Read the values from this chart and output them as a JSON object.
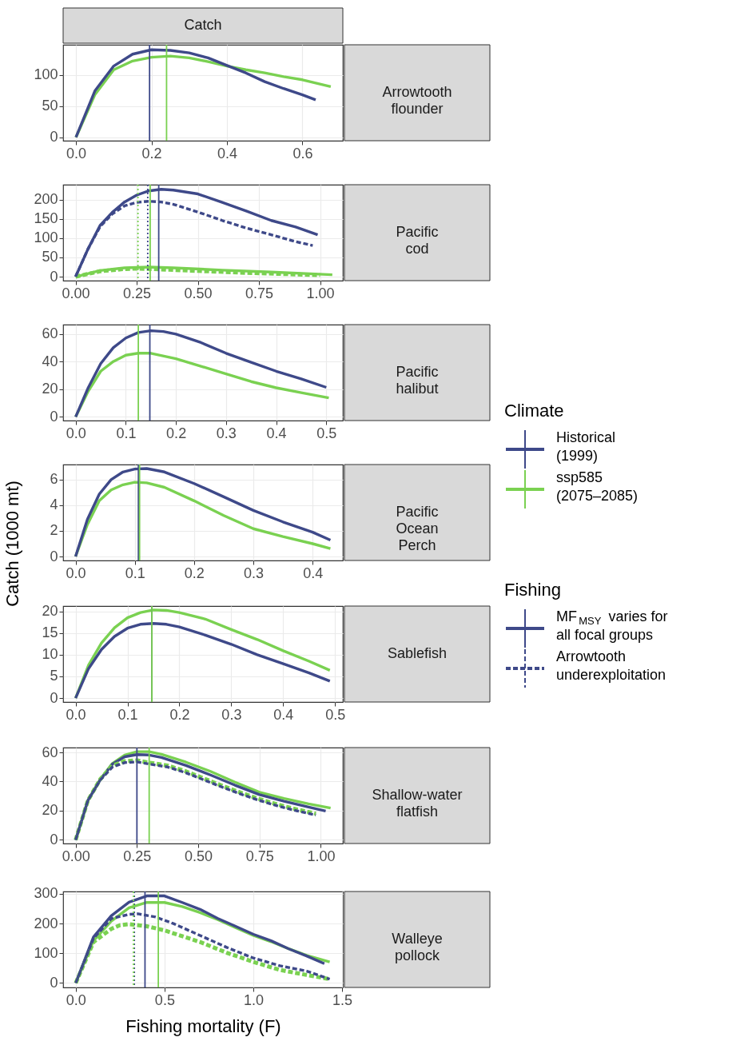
{
  "chart_data": [
    {
      "type": "line",
      "title": "Catch",
      "annotations": [
        "Arrowtooth flounder"
      ],
      "legend_title": "Climate",
      "legend": "right",
      "grid": true,
      "xlim": [
        -0.034,
        0.707
      ],
      "ylim": [
        -5.5,
        148
      ],
      "xticks": [
        {
          "value": 0,
          "label": "0.0"
        },
        0.2,
        0.4,
        0.6
      ],
      "yticks": [
        0,
        50,
        100
      ],
      "series": [
        {
          "name": "Historical (1999)",
          "color": "#3e4989",
          "line_style": "solid",
          "x": [
            0,
            0.05,
            0.1,
            0.15,
            0.2,
            0.25,
            0.3,
            0.35,
            0.4,
            0.45,
            0.5,
            0.55,
            0.6,
            0.635
          ],
          "values": [
            0,
            74,
            114,
            133,
            140,
            139,
            135,
            127,
            115,
            103,
            89,
            78,
            68,
            60
          ]
        },
        {
          "name": "ssp585 (2075–2085)",
          "color": "#7ad151",
          "line_style": "solid",
          "x": [
            0,
            0.05,
            0.1,
            0.15,
            0.2,
            0.25,
            0.3,
            0.35,
            0.4,
            0.45,
            0.5,
            0.55,
            0.6,
            0.675
          ],
          "values": [
            0,
            68,
            108,
            122,
            128,
            130,
            127,
            121,
            114,
            108,
            103,
            97,
            92,
            81
          ]
        }
      ],
      "ref_lines": [
        {
          "axis": "x",
          "value": 0.195,
          "color": "#3e4989",
          "line_style": "solid"
        },
        {
          "axis": "x",
          "value": 0.24,
          "color": "#7ad151",
          "line_style": "solid"
        }
      ]
    },
    {
      "type": "line",
      "annotations": [
        "Pacific cod"
      ],
      "legend_title": "Fishing",
      "legend": "right",
      "grid": true,
      "xlim": [
        -0.051,
        1.093
      ],
      "ylim": [
        -10.3,
        239
      ],
      "xticks": [
        {
          "value": 0,
          "label": "0.00"
        },
        {
          "value": 0.25,
          "label": "0.25"
        },
        {
          "value": 0.5,
          "label": "0.50"
        },
        {
          "value": 0.75,
          "label": "0.75"
        },
        {
          "value": 1,
          "label": "1.00"
        }
      ],
      "yticks": [
        0,
        50,
        100,
        150,
        200
      ],
      "series": [
        {
          "name": "MF$_{MSY}$ varies for all focal groups",
          "color": "#3e4989",
          "line_style": "solid",
          "x": [
            0,
            0.05,
            0.1,
            0.15,
            0.2,
            0.25,
            0.3,
            0.35,
            0.4,
            0.5,
            0.6,
            0.7,
            0.8,
            0.9,
            0.99
          ],
          "values": [
            0,
            71,
            133,
            167,
            194,
            212,
            223,
            227,
            225,
            215,
            193,
            170,
            146,
            129,
            109
          ]
        },
        {
          "color": "#7ad151",
          "line_style": "solid",
          "x": [
            0,
            0.1,
            0.2,
            0.3,
            0.4,
            0.6,
            0.8,
            1.05
          ],
          "values": [
            0,
            16,
            23,
            25,
            23,
            17,
            12,
            5
          ]
        },
        {
          "name": "Arrowtooth underexploitation",
          "color": "#3e4989",
          "line_style": "dashed",
          "x": [
            0,
            0.05,
            0.1,
            0.15,
            0.2,
            0.25,
            0.3,
            0.35,
            0.4,
            0.5,
            0.6,
            0.7,
            0.8,
            0.9,
            0.97
          ],
          "values": [
            0,
            71,
            130,
            163,
            184,
            193,
            196,
            194,
            188,
            168,
            146,
            126,
            109,
            91,
            81
          ]
        },
        {
          "color": "#7ad151",
          "line_style": "dashed",
          "x": [
            0,
            0.1,
            0.2,
            0.25,
            0.35,
            0.5,
            0.7,
            1.0
          ],
          "values": [
            0,
            14,
            20,
            21,
            19,
            15,
            10,
            4
          ]
        }
      ],
      "ref_lines": [
        {
          "axis": "x",
          "value": 0.34,
          "color": "#3e4989",
          "line_style": "solid"
        },
        {
          "axis": "x",
          "value": 0.305,
          "color": "#7ad151",
          "line_style": "solid"
        },
        {
          "axis": "x",
          "value": 0.295,
          "color": "#3e4989",
          "line_style": "dotted"
        },
        {
          "axis": "x",
          "value": 0.255,
          "color": "#7ad151",
          "line_style": "dotted"
        }
      ]
    },
    {
      "type": "line",
      "annotations": [
        "Pacific halibut"
      ],
      "grid": true,
      "xlim": [
        -0.025,
        0.533
      ],
      "ylim": [
        -2.7,
        66.7
      ],
      "xticks": [
        {
          "value": 0,
          "label": "0.0"
        },
        0.1,
        0.2,
        0.3,
        0.4,
        0.5
      ],
      "yticks": [
        0,
        20,
        40,
        60
      ],
      "series": [
        {
          "color": "#3e4989",
          "line_style": "solid",
          "x": [
            0,
            0.025,
            0.05,
            0.075,
            0.1,
            0.125,
            0.15,
            0.175,
            0.2,
            0.25,
            0.3,
            0.35,
            0.4,
            0.45,
            0.5
          ],
          "values": [
            0,
            21,
            38.5,
            50,
            57,
            61,
            62.3,
            61.7,
            59.8,
            53.7,
            46,
            39.4,
            33,
            27.4,
            21.3
          ]
        },
        {
          "color": "#7ad151",
          "line_style": "solid",
          "x": [
            0,
            0.025,
            0.05,
            0.075,
            0.1,
            0.125,
            0.15,
            0.2,
            0.25,
            0.3,
            0.35,
            0.4,
            0.45,
            0.505
          ],
          "values": [
            0,
            18.5,
            33,
            40,
            44.6,
            46,
            46,
            42,
            36.6,
            31,
            25.5,
            21,
            17.5,
            13.7
          ]
        }
      ],
      "ref_lines": [
        {
          "axis": "x",
          "value": 0.148,
          "color": "#3e4989",
          "line_style": "solid"
        },
        {
          "axis": "x",
          "value": 0.125,
          "color": "#7ad151",
          "line_style": "solid"
        }
      ]
    },
    {
      "type": "line",
      "annotations": [
        "Pacific Ocean Perch"
      ],
      "ylabel": "Catch (1000 mt)",
      "grid": true,
      "xlim": [
        -0.021,
        0.451
      ],
      "ylim": [
        -0.31,
        7.18
      ],
      "xticks": [
        {
          "value": 0,
          "label": "0.0"
        },
        0.1,
        0.2,
        0.3,
        0.4
      ],
      "yticks": [
        0,
        2,
        4,
        6
      ],
      "series": [
        {
          "color": "#3e4989",
          "line_style": "solid",
          "x": [
            0,
            0.02,
            0.04,
            0.06,
            0.08,
            0.1,
            0.12,
            0.15,
            0.2,
            0.25,
            0.3,
            0.35,
            0.4,
            0.43
          ],
          "values": [
            0,
            2.9,
            4.87,
            6.0,
            6.6,
            6.83,
            6.87,
            6.6,
            5.7,
            4.66,
            3.6,
            2.7,
            1.9,
            1.28
          ]
        },
        {
          "color": "#7ad151",
          "line_style": "solid",
          "x": [
            0,
            0.02,
            0.04,
            0.06,
            0.08,
            0.1,
            0.12,
            0.15,
            0.2,
            0.25,
            0.3,
            0.35,
            0.4,
            0.43
          ],
          "values": [
            0,
            2.5,
            4.35,
            5.2,
            5.6,
            5.8,
            5.75,
            5.4,
            4.35,
            3.2,
            2.17,
            1.55,
            1.0,
            0.62
          ]
        }
      ],
      "ref_lines": [
        {
          "axis": "x",
          "value": 0.106,
          "color": "#3e4989",
          "line_style": "solid"
        },
        {
          "axis": "x",
          "value": 0.108,
          "color": "#7ad151",
          "line_style": "solid"
        }
      ]
    },
    {
      "type": "line",
      "annotations": [
        "Sablefish"
      ],
      "grid": true,
      "xlim": [
        -0.024,
        0.515
      ],
      "ylim": [
        -0.9,
        21.2
      ],
      "xticks": [
        {
          "value": 0,
          "label": "0.0"
        },
        0.1,
        0.2,
        0.3,
        0.4,
        0.5
      ],
      "yticks": [
        0,
        5,
        10,
        15,
        20
      ],
      "series": [
        {
          "color": "#3e4989",
          "line_style": "solid",
          "x": [
            0,
            0.025,
            0.05,
            0.075,
            0.1,
            0.125,
            0.15,
            0.175,
            0.2,
            0.25,
            0.3,
            0.35,
            0.4,
            0.45,
            0.49
          ],
          "values": [
            0,
            6.8,
            11.2,
            14.2,
            16.1,
            17.0,
            17.2,
            17.0,
            16.4,
            14.5,
            12.4,
            10,
            7.9,
            5.8,
            3.9
          ]
        },
        {
          "color": "#7ad151",
          "line_style": "solid",
          "x": [
            0,
            0.025,
            0.05,
            0.075,
            0.1,
            0.125,
            0.15,
            0.175,
            0.2,
            0.25,
            0.3,
            0.35,
            0.4,
            0.45,
            0.49
          ],
          "values": [
            0,
            7.6,
            12.7,
            16.2,
            18.5,
            19.7,
            20.3,
            20.2,
            19.7,
            18.2,
            15.8,
            13.5,
            10.9,
            8.5,
            6.4
          ]
        }
      ],
      "ref_lines": [
        {
          "axis": "x",
          "value": 0.147,
          "color": "#3e4989",
          "line_style": "solid"
        },
        {
          "axis": "x",
          "value": 0.147,
          "color": "#7ad151",
          "line_style": "solid"
        }
      ]
    },
    {
      "type": "line",
      "annotations": [
        "Shallow-water flatfish"
      ],
      "grid": true,
      "xlim": [
        -0.051,
        1.09
      ],
      "ylim": [
        -2.5,
        63.3
      ],
      "xticks": [
        {
          "value": 0,
          "label": "0.00"
        },
        {
          "value": 0.25,
          "label": "0.25"
        },
        {
          "value": 0.5,
          "label": "0.50"
        },
        {
          "value": 0.75,
          "label": "0.75"
        },
        {
          "value": 1,
          "label": "1.00"
        }
      ],
      "yticks": [
        0,
        20,
        40,
        60
      ],
      "series": [
        {
          "color": "#3e4989",
          "line_style": "solid",
          "x": [
            0,
            0.05,
            0.1,
            0.15,
            0.2,
            0.25,
            0.3,
            0.35,
            0.45,
            0.55,
            0.65,
            0.75,
            0.85,
            0.95,
            1.02
          ],
          "values": [
            0,
            27,
            41,
            52,
            57,
            58.5,
            58.2,
            56.5,
            51,
            44.5,
            37.5,
            31,
            26.5,
            22.5,
            19.8
          ]
        },
        {
          "color": "#7ad151",
          "line_style": "solid",
          "x": [
            0,
            0.05,
            0.1,
            0.15,
            0.2,
            0.25,
            0.3,
            0.35,
            0.45,
            0.55,
            0.65,
            0.75,
            0.85,
            0.95,
            1.04
          ],
          "values": [
            0,
            27,
            41.5,
            52.4,
            58.2,
            60.5,
            60.5,
            58.7,
            53.3,
            47,
            39.6,
            32.7,
            28.4,
            24.7,
            21.8
          ]
        },
        {
          "color": "#3e4989",
          "line_style": "dashed",
          "x": [
            0,
            0.05,
            0.1,
            0.15,
            0.2,
            0.25,
            0.3,
            0.375,
            0.45,
            0.525,
            0.6,
            0.68,
            0.75,
            0.83,
            0.9,
            0.98
          ],
          "values": [
            0,
            27,
            41,
            50,
            53,
            53.5,
            52,
            50,
            46,
            41,
            36,
            31,
            27,
            23,
            20,
            17
          ]
        },
        {
          "color": "#7ad151",
          "line_style": "dashed",
          "x": [
            0,
            0.05,
            0.1,
            0.15,
            0.2,
            0.25,
            0.3,
            0.375,
            0.45,
            0.525,
            0.6,
            0.68,
            0.75,
            0.83,
            0.9,
            0.98
          ],
          "values": [
            0,
            27,
            41.5,
            51,
            54,
            54.5,
            53,
            51,
            47,
            42,
            37,
            32,
            28,
            24,
            21,
            18
          ]
        }
      ],
      "ref_lines": [
        {
          "axis": "x",
          "value": 0.25,
          "color": "#3e4989",
          "line_style": "solid"
        },
        {
          "axis": "x",
          "value": 0.3,
          "color": "#7ad151",
          "line_style": "solid"
        }
      ]
    },
    {
      "type": "line",
      "annotations": [
        "Walleye pollock"
      ],
      "xlabel": "Fishing mortality (F)",
      "grid": true,
      "xlim": [
        -0.071,
        1.504
      ],
      "ylim": [
        -15,
        308
      ],
      "xticks": [
        {
          "value": 0,
          "label": "0.0"
        },
        0.5,
        {
          "value": 1,
          "label": "1.0"
        },
        1.5
      ],
      "yticks": [
        0,
        100,
        200,
        300
      ],
      "series": [
        {
          "color": "#3e4989",
          "line_style": "solid",
          "x": [
            0,
            0.1,
            0.2,
            0.3,
            0.4,
            0.5,
            0.6,
            0.7,
            0.8,
            0.9,
            1.0,
            1.1,
            1.2,
            1.3,
            1.4
          ],
          "values": [
            0,
            155,
            226,
            272,
            293,
            293,
            271,
            248,
            217,
            191,
            164,
            142,
            115,
            91,
            65
          ]
        },
        {
          "color": "#7ad151",
          "line_style": "solid",
          "x": [
            0,
            0.1,
            0.2,
            0.3,
            0.4,
            0.5,
            0.6,
            0.7,
            0.8,
            0.9,
            1.0,
            1.1,
            1.2,
            1.3,
            1.43
          ],
          "values": [
            0,
            142,
            208,
            253,
            271,
            271,
            257,
            237,
            213,
            186,
            160,
            139,
            115,
            93,
            71
          ]
        },
        {
          "color": "#3e4989",
          "line_style": "dashed",
          "x": [
            0,
            0.1,
            0.2,
            0.3,
            0.35,
            0.45,
            0.55,
            0.7,
            0.85,
            1.0,
            1.15,
            1.3,
            1.43
          ],
          "values": [
            0,
            150,
            217,
            231,
            233,
            222,
            200,
            160,
            120,
            84,
            58,
            40,
            13
          ]
        },
        {
          "color": "#7ad151",
          "line_style": "dashed",
          "x": [
            0,
            0.1,
            0.2,
            0.25,
            0.3,
            0.4,
            0.5,
            0.7,
            0.85,
            1.0,
            1.15,
            1.3,
            1.43
          ],
          "values": [
            0,
            138,
            182,
            195,
            198,
            191,
            177,
            138,
            102,
            71,
            44,
            27,
            13
          ]
        }
      ],
      "ref_lines": [
        {
          "axis": "x",
          "value": 0.39,
          "color": "#3e4989",
          "line_style": "solid"
        },
        {
          "axis": "x",
          "value": 0.465,
          "color": "#7ad151",
          "line_style": "solid"
        },
        {
          "axis": "x",
          "value": 0.33,
          "color": "#3e4989",
          "line_style": "dotted"
        },
        {
          "axis": "x",
          "value": 0.325,
          "color": "#7ad151",
          "line_style": "dotted"
        }
      ]
    }
  ]
}
